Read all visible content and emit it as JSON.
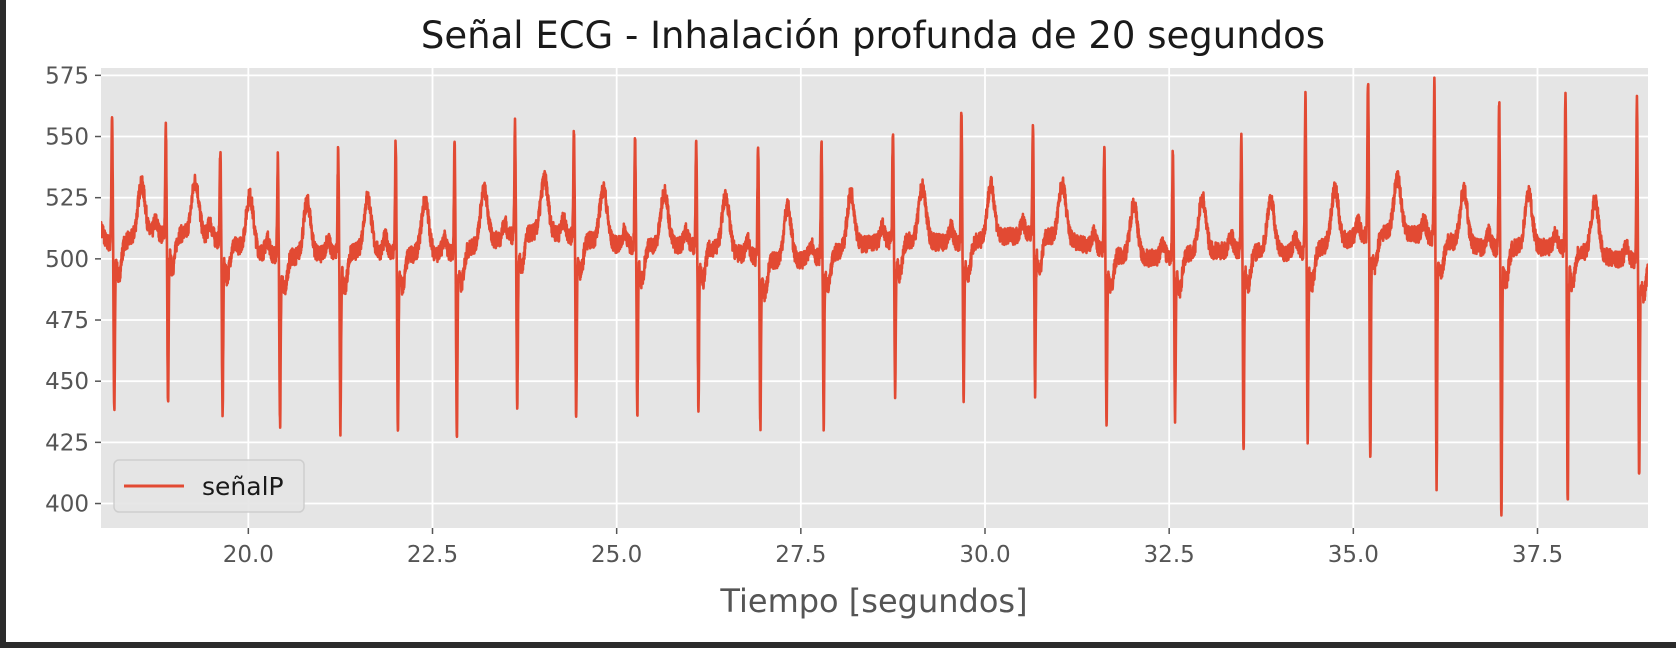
{
  "chart_data": {
    "type": "line",
    "title": "Señal ECG - Inhalación profunda de 20 segundos",
    "xlabel": "Tiempo [segundos]",
    "ylabel": "",
    "xlim": [
      18.0,
      39.0
    ],
    "ylim": [
      390,
      578
    ],
    "grid": true,
    "legend_position": "lower-left",
    "x_ticks": [
      {
        "value": 20.0,
        "label": "20.0"
      },
      {
        "value": 22.5,
        "label": "22.5"
      },
      {
        "value": 25.0,
        "label": "25.0"
      },
      {
        "value": 27.5,
        "label": "27.5"
      },
      {
        "value": 30.0,
        "label": "30.0"
      },
      {
        "value": 32.5,
        "label": "32.5"
      },
      {
        "value": 35.0,
        "label": "35.0"
      },
      {
        "value": 37.5,
        "label": "37.5"
      }
    ],
    "y_ticks": [
      {
        "value": 400,
        "label": "400"
      },
      {
        "value": 425,
        "label": "425"
      },
      {
        "value": 450,
        "label": "450"
      },
      {
        "value": 475,
        "label": "475"
      },
      {
        "value": 500,
        "label": "500"
      },
      {
        "value": 525,
        "label": "525"
      },
      {
        "value": 550,
        "label": "550"
      },
      {
        "value": 575,
        "label": "575"
      }
    ],
    "series": [
      {
        "name": "señalP",
        "color": "#e24a33",
        "sampling_step_s": 0.01,
        "baseline": 505,
        "beats": [
          {
            "t": 18.15,
            "peak": 558,
            "trough": 438
          },
          {
            "t": 18.88,
            "peak": 549,
            "trough": 438
          },
          {
            "t": 19.62,
            "peak": 543,
            "trough": 436
          },
          {
            "t": 20.4,
            "peak": 545,
            "trough": 439
          },
          {
            "t": 21.22,
            "peak": 548,
            "trough": 437
          },
          {
            "t": 22.0,
            "peak": 550,
            "trough": 435
          },
          {
            "t": 22.8,
            "peak": 549,
            "trough": 433
          },
          {
            "t": 23.62,
            "peak": 551,
            "trough": 438
          },
          {
            "t": 24.42,
            "peak": 549,
            "trough": 434
          },
          {
            "t": 25.25,
            "peak": 549,
            "trough": 440
          },
          {
            "t": 26.08,
            "peak": 550,
            "trough": 443
          },
          {
            "t": 26.92,
            "peak": 553,
            "trough": 439
          },
          {
            "t": 27.78,
            "peak": 553,
            "trough": 440
          },
          {
            "t": 28.75,
            "peak": 551,
            "trough": 447
          },
          {
            "t": 29.68,
            "peak": 560,
            "trough": 444
          },
          {
            "t": 30.65,
            "peak": 551,
            "trough": 445
          },
          {
            "t": 31.62,
            "peak": 550,
            "trough": 439
          },
          {
            "t": 32.55,
            "peak": 549,
            "trough": 443
          },
          {
            "t": 33.48,
            "peak": 553,
            "trough": 428
          },
          {
            "t": 34.35,
            "peak": 569,
            "trough": 431
          },
          {
            "t": 35.2,
            "peak": 570,
            "trough": 417
          },
          {
            "t": 36.1,
            "peak": 568,
            "trough": 408
          },
          {
            "t": 36.98,
            "peak": 565,
            "trough": 398
          },
          {
            "t": 37.88,
            "peak": 571,
            "trough": 405
          },
          {
            "t": 38.85,
            "peak": 570,
            "trough": 420
          }
        ]
      }
    ]
  },
  "ui": {
    "background": "#e5e5e5",
    "grid_color": "#ffffff"
  }
}
